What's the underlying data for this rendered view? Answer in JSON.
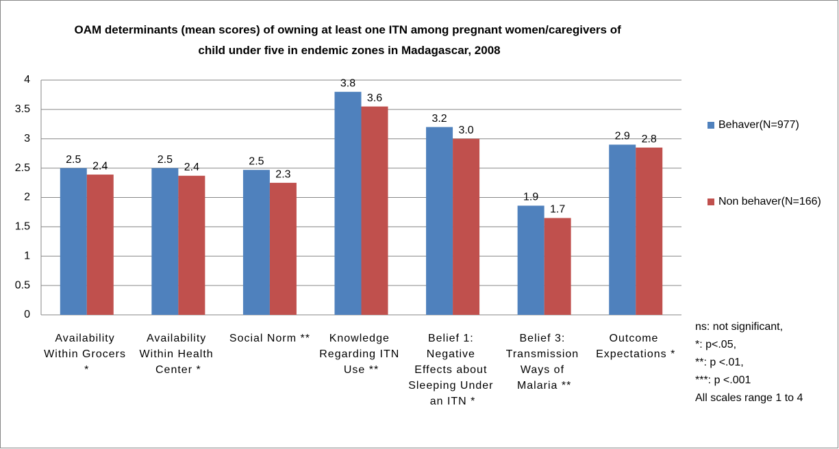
{
  "chart_data": {
    "type": "bar",
    "title": "OAM determinants (mean scores) of owning at least one ITN among pregnant women/caregivers of child under five in endemic zones in Madagascar, 2008",
    "categories": [
      "Availability Within Grocers *",
      "Availability Within Health Center *",
      "Social Norm **",
      "Knowledge Regarding ITN Use **",
      "Belief 1: Negative Effects about Sleeping Under an ITN *",
      "Belief 3: Transmission Ways of Malaria **",
      "Outcome Expectations *"
    ],
    "series": [
      {
        "name": "Behaver(N=977)",
        "color": "#4f81bd",
        "values": [
          2.5,
          2.5,
          2.47,
          3.8,
          3.2,
          1.86,
          2.9
        ],
        "value_labels": [
          "2.5",
          "2.5",
          "2.5",
          "3.8",
          "3.2",
          "1.9",
          "2.9"
        ]
      },
      {
        "name": "Non behaver(N=166)",
        "color": "#c0504d",
        "values": [
          2.39,
          2.37,
          2.25,
          3.55,
          3.0,
          1.65,
          2.85
        ],
        "value_labels": [
          "2.4",
          "2.4",
          "2.3",
          "3.6",
          "3.0",
          "1.7",
          "2.8"
        ]
      }
    ],
    "ylim": [
      0,
      4
    ],
    "yticks": [
      0,
      0.5,
      1,
      1.5,
      2,
      2.5,
      3,
      3.5,
      4
    ],
    "grid": true,
    "legend": "right",
    "notes": [
      "ns: not significant,",
      "*: p<.05,",
      "**: p <.01,",
      "***: p <.001",
      "All scales range 1 to 4"
    ]
  }
}
